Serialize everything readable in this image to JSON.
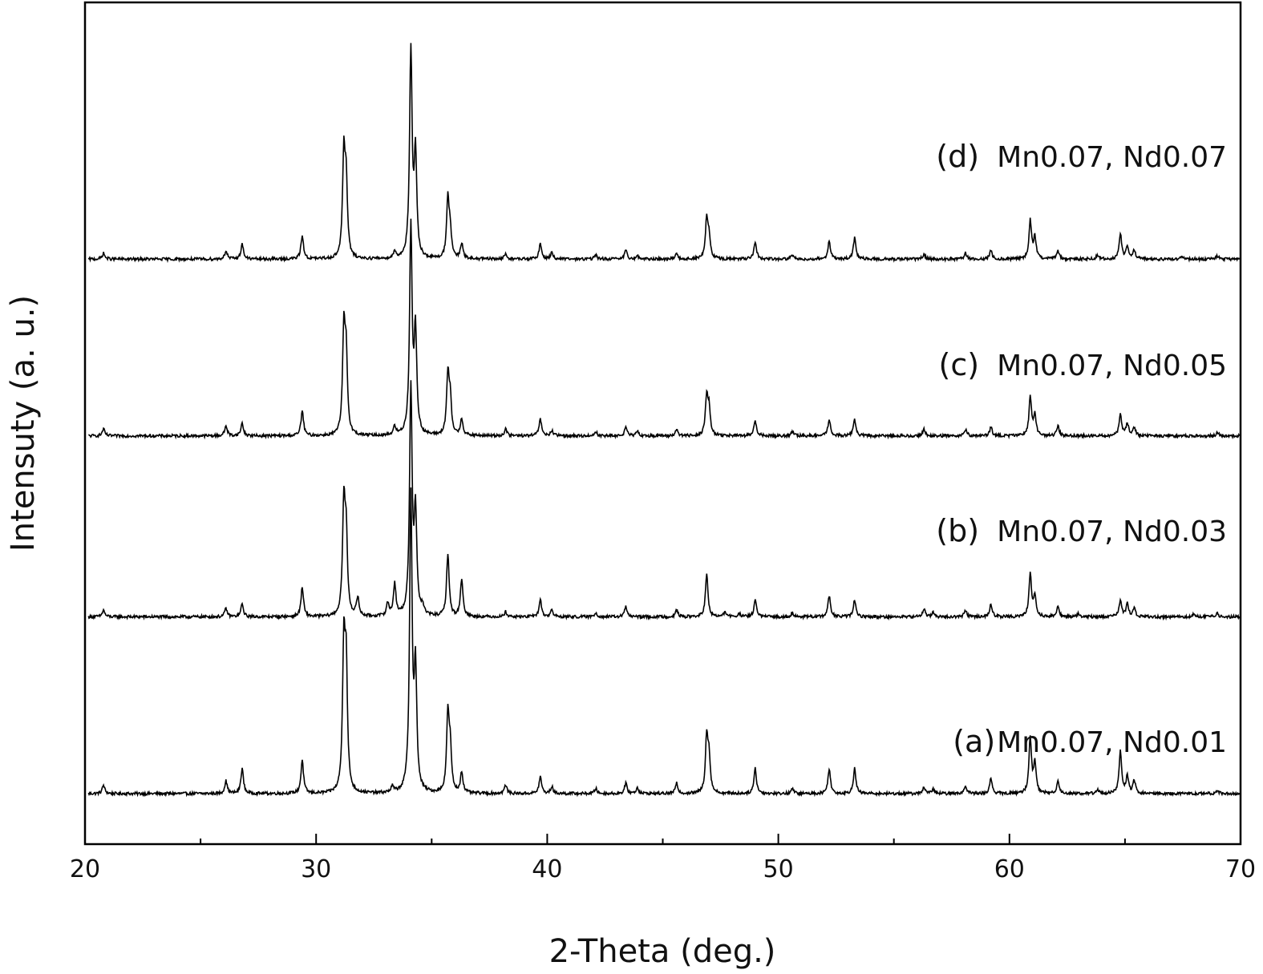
{
  "chart_data": {
    "type": "line",
    "title": "",
    "xlabel": "2-Theta (deg.)",
    "ylabel": "Intensuty (a. u.)",
    "xlim": [
      20,
      70
    ],
    "x_ticks": [
      20,
      30,
      40,
      50,
      60,
      70
    ],
    "x_minor_step": 5,
    "y_ticks_shown": false,
    "grid": false,
    "legend": "none",
    "line_color": "#000000",
    "series": [
      {
        "name": "(a)Mn0.07, Nd0.01",
        "label_prefix": "(a)",
        "label_text": "Mn0.07, Nd0.01",
        "baseline": 0.06,
        "peaks": [
          [
            20.8,
            0.01
          ],
          [
            26.1,
            0.015
          ],
          [
            26.8,
            0.03
          ],
          [
            29.4,
            0.04
          ],
          [
            31.2,
            0.17
          ],
          [
            31.3,
            0.14
          ],
          [
            33.3,
            0.007
          ],
          [
            34.1,
            0.35
          ],
          [
            34.3,
            0.14
          ],
          [
            35.7,
            0.09
          ],
          [
            35.8,
            0.05
          ],
          [
            36.3,
            0.025
          ],
          [
            38.2,
            0.01
          ],
          [
            39.7,
            0.02
          ],
          [
            40.2,
            0.008
          ],
          [
            42.1,
            0.006
          ],
          [
            43.4,
            0.012
          ],
          [
            43.9,
            0.007
          ],
          [
            45.6,
            0.012
          ],
          [
            46.9,
            0.065
          ],
          [
            47.0,
            0.04
          ],
          [
            49.0,
            0.03
          ],
          [
            50.6,
            0.006
          ],
          [
            52.2,
            0.03
          ],
          [
            53.3,
            0.03
          ],
          [
            56.3,
            0.008
          ],
          [
            56.7,
            0.005
          ],
          [
            58.1,
            0.01
          ],
          [
            59.2,
            0.018
          ],
          [
            60.9,
            0.065
          ],
          [
            61.1,
            0.035
          ],
          [
            62.1,
            0.015
          ],
          [
            63.8,
            0.005
          ],
          [
            64.8,
            0.05
          ],
          [
            65.1,
            0.02
          ],
          [
            65.4,
            0.015
          ],
          [
            69.0,
            0.004
          ]
        ]
      },
      {
        "name": "(b) Mn0.07, Nd0.03",
        "label_prefix": "(b)",
        "label_text": "Mn0.07, Nd0.03",
        "baseline": 0.27,
        "peaks": [
          [
            20.8,
            0.008
          ],
          [
            26.1,
            0.01
          ],
          [
            26.8,
            0.015
          ],
          [
            29.4,
            0.035
          ],
          [
            31.2,
            0.13
          ],
          [
            31.3,
            0.09
          ],
          [
            31.8,
            0.022
          ],
          [
            33.1,
            0.015
          ],
          [
            33.4,
            0.038
          ],
          [
            34.1,
            0.27
          ],
          [
            34.3,
            0.12
          ],
          [
            34.6,
            0.01
          ],
          [
            35.7,
            0.075
          ],
          [
            36.3,
            0.045
          ],
          [
            38.2,
            0.006
          ],
          [
            39.7,
            0.02
          ],
          [
            40.2,
            0.008
          ],
          [
            42.1,
            0.005
          ],
          [
            43.4,
            0.012
          ],
          [
            45.6,
            0.008
          ],
          [
            46.9,
            0.05
          ],
          [
            47.7,
            0.006
          ],
          [
            48.3,
            0.004
          ],
          [
            49.0,
            0.02
          ],
          [
            50.6,
            0.005
          ],
          [
            52.2,
            0.025
          ],
          [
            53.3,
            0.02
          ],
          [
            56.3,
            0.01
          ],
          [
            56.7,
            0.005
          ],
          [
            58.1,
            0.008
          ],
          [
            59.2,
            0.015
          ],
          [
            60.9,
            0.05
          ],
          [
            61.1,
            0.025
          ],
          [
            62.1,
            0.012
          ],
          [
            63.0,
            0.004
          ],
          [
            64.8,
            0.02
          ],
          [
            65.1,
            0.015
          ],
          [
            65.4,
            0.01
          ],
          [
            68.0,
            0.004
          ],
          [
            69.0,
            0.004
          ]
        ]
      },
      {
        "name": "(c) Mn0.07, Nd0.05",
        "label_prefix": "(c)",
        "label_text": "Mn0.07, Nd0.05",
        "baseline": 0.485,
        "peaks": [
          [
            20.8,
            0.008
          ],
          [
            26.1,
            0.012
          ],
          [
            26.8,
            0.015
          ],
          [
            29.4,
            0.03
          ],
          [
            31.2,
            0.12
          ],
          [
            31.3,
            0.09
          ],
          [
            33.4,
            0.01
          ],
          [
            34.1,
            0.245
          ],
          [
            34.3,
            0.12
          ],
          [
            35.7,
            0.07
          ],
          [
            35.8,
            0.04
          ],
          [
            36.3,
            0.02
          ],
          [
            38.2,
            0.008
          ],
          [
            39.7,
            0.02
          ],
          [
            40.2,
            0.006
          ],
          [
            42.1,
            0.005
          ],
          [
            43.4,
            0.01
          ],
          [
            43.9,
            0.005
          ],
          [
            45.6,
            0.008
          ],
          [
            46.9,
            0.045
          ],
          [
            47.0,
            0.03
          ],
          [
            49.0,
            0.018
          ],
          [
            50.6,
            0.005
          ],
          [
            52.2,
            0.02
          ],
          [
            53.3,
            0.02
          ],
          [
            56.3,
            0.008
          ],
          [
            58.1,
            0.008
          ],
          [
            59.2,
            0.01
          ],
          [
            60.9,
            0.045
          ],
          [
            61.1,
            0.025
          ],
          [
            62.1,
            0.012
          ],
          [
            64.8,
            0.025
          ],
          [
            65.1,
            0.015
          ],
          [
            65.4,
            0.01
          ],
          [
            69.0,
            0.004
          ]
        ]
      },
      {
        "name": "(d) Mn0.07, Nd0.07",
        "label_prefix": "(d)",
        "label_text": "Mn0.07, Nd0.07",
        "baseline": 0.695,
        "peaks": [
          [
            20.8,
            0.007
          ],
          [
            26.1,
            0.01
          ],
          [
            26.8,
            0.018
          ],
          [
            29.4,
            0.028
          ],
          [
            31.2,
            0.12
          ],
          [
            31.3,
            0.085
          ],
          [
            33.4,
            0.008
          ],
          [
            34.1,
            0.245
          ],
          [
            34.3,
            0.12
          ],
          [
            35.7,
            0.07
          ],
          [
            35.8,
            0.03
          ],
          [
            36.3,
            0.018
          ],
          [
            38.2,
            0.006
          ],
          [
            39.7,
            0.018
          ],
          [
            40.2,
            0.008
          ],
          [
            42.1,
            0.005
          ],
          [
            43.4,
            0.01
          ],
          [
            43.9,
            0.004
          ],
          [
            45.6,
            0.007
          ],
          [
            46.9,
            0.045
          ],
          [
            47.0,
            0.025
          ],
          [
            49.0,
            0.02
          ],
          [
            50.6,
            0.005
          ],
          [
            52.2,
            0.022
          ],
          [
            53.3,
            0.025
          ],
          [
            56.3,
            0.006
          ],
          [
            58.1,
            0.007
          ],
          [
            59.2,
            0.01
          ],
          [
            60.9,
            0.045
          ],
          [
            61.1,
            0.025
          ],
          [
            62.1,
            0.01
          ],
          [
            63.8,
            0.004
          ],
          [
            64.8,
            0.03
          ],
          [
            65.1,
            0.015
          ],
          [
            65.4,
            0.01
          ],
          [
            67.5,
            0.003
          ],
          [
            69.0,
            0.004
          ]
        ]
      }
    ]
  }
}
